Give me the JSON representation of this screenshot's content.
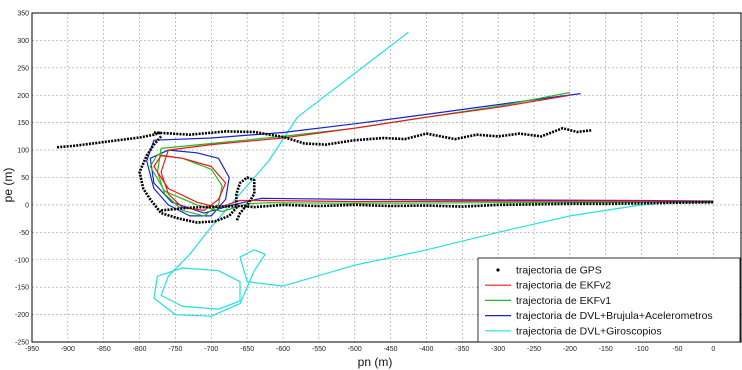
{
  "chart_data": {
    "type": "line",
    "title": "",
    "xlabel": "pn (m)",
    "ylabel": "pe (m)",
    "xlim": [
      -950,
      40
    ],
    "ylim": [
      -250,
      350
    ],
    "x_ticks": [
      -950,
      -900,
      -850,
      -800,
      -750,
      -700,
      -650,
      -600,
      -550,
      -500,
      -450,
      -400,
      -350,
      -300,
      -250,
      -200,
      -150,
      -100,
      -50,
      0
    ],
    "y_ticks": [
      -250,
      -200,
      -150,
      -100,
      -50,
      0,
      50,
      100,
      150,
      200,
      250,
      300,
      350
    ],
    "grid": true,
    "legend_position": "bottom-right",
    "colors": {
      "gps": "#000000",
      "ekfv2": "#e8191c",
      "ekfv1": "#22bb22",
      "dvl_brujula": "#1a22cc",
      "dvl_giro": "#22e0e0"
    },
    "series": [
      {
        "name": "trajectoria de GPS",
        "marker": "dot",
        "segments": [
          [
            [
              -915,
              105
            ],
            [
              -890,
              108
            ],
            [
              -860,
              113
            ],
            [
              -830,
              118
            ],
            [
              -800,
              123
            ],
            [
              -780,
              128
            ],
            [
              -770,
              132
            ]
          ],
          [
            [
              -780,
              132
            ],
            [
              -730,
              128
            ],
            [
              -680,
              134
            ],
            [
              -640,
              133
            ],
            [
              -600,
              124
            ],
            [
              -570,
              112
            ],
            [
              -540,
              110
            ],
            [
              -500,
              118
            ],
            [
              -460,
              122
            ],
            [
              -430,
              120
            ],
            [
              -400,
              130
            ],
            [
              -360,
              120
            ],
            [
              -330,
              128
            ],
            [
              -300,
              125
            ],
            [
              -270,
              130
            ],
            [
              -240,
              125
            ],
            [
              -210,
              140
            ],
            [
              -190,
              133
            ],
            [
              -170,
              136
            ]
          ],
          [
            [
              -770,
              125
            ],
            [
              -780,
              110
            ],
            [
              -790,
              90
            ],
            [
              -800,
              60
            ],
            [
              -795,
              30
            ],
            [
              -785,
              10
            ],
            [
              -770,
              -15
            ],
            [
              -745,
              -25
            ],
            [
              -720,
              -32
            ],
            [
              -695,
              -30
            ],
            [
              -675,
              -20
            ],
            [
              -665,
              -5
            ],
            [
              -665,
              20
            ],
            [
              -660,
              40
            ],
            [
              -650,
              50
            ],
            [
              -640,
              45
            ],
            [
              -640,
              20
            ],
            [
              -650,
              0
            ],
            [
              -660,
              -15
            ],
            [
              -665,
              -30
            ]
          ],
          [
            [
              -770,
              -10
            ],
            [
              -730,
              -5
            ],
            [
              -690,
              -3
            ],
            [
              -660,
              -2
            ],
            [
              -640,
              -4
            ],
            [
              -600,
              0
            ],
            [
              -550,
              -2
            ],
            [
              -500,
              0
            ],
            [
              -450,
              -2
            ],
            [
              -400,
              -1
            ],
            [
              -350,
              -3
            ],
            [
              -300,
              0
            ],
            [
              -250,
              1
            ],
            [
              -200,
              2
            ],
            [
              -150,
              2
            ],
            [
              -100,
              3
            ],
            [
              -50,
              4
            ],
            [
              0,
              5
            ]
          ]
        ]
      },
      {
        "name": "trajectoria de EKFv2",
        "segments": [
          [
            [
              -200,
              200
            ],
            [
              -300,
              178
            ],
            [
              -400,
              160
            ],
            [
              -500,
              140
            ],
            [
              -600,
              122
            ],
            [
              -700,
              110
            ],
            [
              -760,
              100
            ],
            [
              -770,
              60
            ],
            [
              -760,
              20
            ],
            [
              -740,
              -5
            ],
            [
              -710,
              -10
            ],
            [
              -690,
              10
            ],
            [
              -680,
              40
            ],
            [
              -700,
              70
            ],
            [
              -740,
              85
            ],
            [
              -770,
              90
            ],
            [
              -780,
              70
            ],
            [
              -760,
              30
            ],
            [
              -720,
              5
            ],
            [
              -690,
              -5
            ],
            [
              -660,
              8
            ],
            [
              -620,
              8
            ],
            [
              -500,
              6
            ],
            [
              -300,
              7
            ],
            [
              -100,
              7
            ],
            [
              0,
              6
            ]
          ]
        ]
      },
      {
        "name": "trajectoria de EKFv1",
        "segments": [
          [
            [
              -200,
              205
            ],
            [
              -300,
              180
            ],
            [
              -400,
              160
            ],
            [
              -500,
              140
            ],
            [
              -600,
              125
            ],
            [
              -700,
              112
            ],
            [
              -770,
              103
            ],
            [
              -775,
              60
            ],
            [
              -765,
              20
            ],
            [
              -740,
              -10
            ],
            [
              -710,
              -20
            ],
            [
              -690,
              0
            ],
            [
              -685,
              35
            ],
            [
              -700,
              65
            ],
            [
              -740,
              85
            ],
            [
              -775,
              92
            ],
            [
              -785,
              70
            ],
            [
              -765,
              25
            ],
            [
              -720,
              0
            ],
            [
              -685,
              -12
            ],
            [
              -650,
              2
            ],
            [
              -620,
              4
            ],
            [
              -500,
              3
            ],
            [
              -300,
              4
            ],
            [
              -100,
              5
            ],
            [
              0,
              4
            ]
          ]
        ]
      },
      {
        "name": "trajectoria de DVL+Brujula+Acelerometros",
        "segments": [
          [
            [
              -185,
              203
            ],
            [
              -300,
              183
            ],
            [
              -400,
              165
            ],
            [
              -500,
              148
            ],
            [
              -600,
              132
            ],
            [
              -700,
              122
            ],
            [
              -780,
              118
            ],
            [
              -790,
              80
            ],
            [
              -780,
              30
            ],
            [
              -760,
              0
            ],
            [
              -730,
              -20
            ],
            [
              -700,
              -20
            ],
            [
              -680,
              10
            ],
            [
              -675,
              50
            ],
            [
              -690,
              85
            ],
            [
              -720,
              95
            ],
            [
              -760,
              100
            ],
            [
              -785,
              85
            ],
            [
              -780,
              40
            ],
            [
              -755,
              5
            ],
            [
              -710,
              -15
            ],
            [
              -670,
              0
            ],
            [
              -630,
              12
            ],
            [
              -500,
              10
            ],
            [
              -300,
              9
            ],
            [
              -100,
              8
            ],
            [
              0,
              7
            ]
          ]
        ]
      },
      {
        "name": "trajectoria de DVL+Giroscopios",
        "segments": [
          [
            [
              -425,
              315
            ],
            [
              -470,
              270
            ],
            [
              -520,
              220
            ],
            [
              -580,
              160
            ],
            [
              -620,
              80
            ],
            [
              -660,
              20
            ],
            [
              -700,
              -40
            ],
            [
              -730,
              -90
            ],
            [
              -760,
              -130
            ],
            [
              -770,
              -165
            ],
            [
              -740,
              -185
            ],
            [
              -690,
              -190
            ],
            [
              -660,
              -175
            ],
            [
              -660,
              -140
            ],
            [
              -690,
              -120
            ],
            [
              -740,
              -115
            ],
            [
              -775,
              -130
            ],
            [
              -780,
              -170
            ],
            [
              -750,
              -200
            ],
            [
              -700,
              -203
            ],
            [
              -660,
              -180
            ],
            [
              -650,
              -150
            ],
            [
              -640,
              -120
            ],
            [
              -625,
              -90
            ],
            [
              -640,
              -82
            ],
            [
              -660,
              -95
            ],
            [
              -650,
              -140
            ],
            [
              -600,
              -148
            ],
            [
              -500,
              -110
            ],
            [
              -400,
              -82
            ],
            [
              -300,
              -50
            ],
            [
              -200,
              -20
            ],
            [
              -100,
              0
            ],
            [
              -80,
              2
            ]
          ]
        ]
      }
    ]
  }
}
